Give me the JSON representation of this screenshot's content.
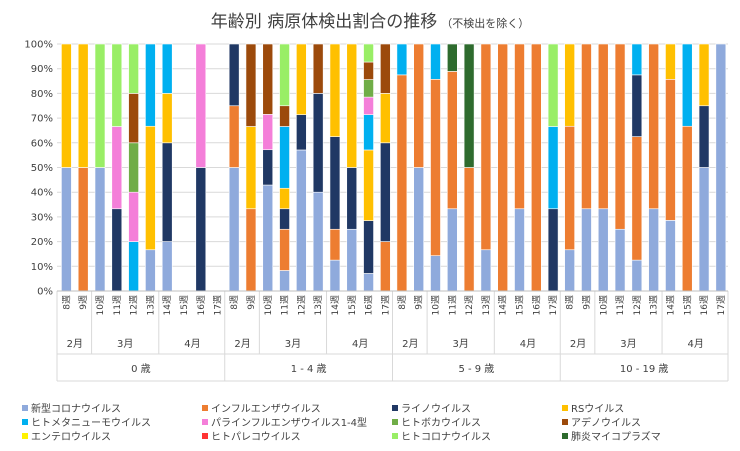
{
  "chart_data": {
    "type": "bar",
    "stacked": "percent",
    "title": "年齢別 病原体検出割合の推移",
    "subtitle": "（不検出を除く）",
    "ylim": [
      0,
      100
    ],
    "yticks": [
      "0%",
      "10%",
      "20%",
      "30%",
      "40%",
      "50%",
      "60%",
      "70%",
      "80%",
      "90%",
      "100%"
    ],
    "weeks": [
      "8週",
      "9週",
      "10週",
      "11週",
      "12週",
      "13週",
      "14週",
      "15週",
      "16週",
      "17週"
    ],
    "months": [
      {
        "label": "2月",
        "start": 0,
        "end": 1
      },
      {
        "label": "3月",
        "start": 2,
        "end": 5
      },
      {
        "label": "4月",
        "start": 6,
        "end": 9
      }
    ],
    "pathogens": [
      {
        "name": "新型コロナウイルス",
        "color": "#8FAADC"
      },
      {
        "name": "インフルエンザウイルス",
        "color": "#ED7D31"
      },
      {
        "name": "ライノウイルス",
        "color": "#203864"
      },
      {
        "name": "RSウイルス",
        "color": "#FFC000"
      },
      {
        "name": "ヒトメタニューモウイルス",
        "color": "#00B0F0"
      },
      {
        "name": "パラインフルエンザウイルス1-4型",
        "color": "#F47FD9"
      },
      {
        "name": "ヒトボカウイルス",
        "color": "#70AD47"
      },
      {
        "name": "アデノウイルス",
        "color": "#9C4A0B"
      },
      {
        "name": "エンテロウイルス",
        "color": "#FFF200"
      },
      {
        "name": "ヒトパレコウイルス",
        "color": "#FF3333"
      },
      {
        "name": "ヒトコロナウイルス",
        "color": "#99EE66"
      },
      {
        "name": "肺炎マイコプラズマ",
        "color": "#2E6B2E"
      }
    ],
    "groups": [
      {
        "label": "0 歳",
        "bars": [
          {
            "week": "8週",
            "segments": [
              {
                "p": 0,
                "v": 50
              },
              {
                "p": 3,
                "v": 50
              }
            ]
          },
          {
            "week": "9週",
            "segments": [
              {
                "p": 1,
                "v": 50
              },
              {
                "p": 3,
                "v": 50
              }
            ]
          },
          {
            "week": "10週",
            "segments": [
              {
                "p": 0,
                "v": 50
              },
              {
                "p": 10,
                "v": 50
              }
            ]
          },
          {
            "week": "11週",
            "segments": [
              {
                "p": 2,
                "v": 33.3
              },
              {
                "p": 5,
                "v": 33.3
              },
              {
                "p": 10,
                "v": 33.4
              }
            ]
          },
          {
            "week": "12週",
            "segments": [
              {
                "p": 4,
                "v": 20
              },
              {
                "p": 5,
                "v": 20
              },
              {
                "p": 6,
                "v": 20
              },
              {
                "p": 7,
                "v": 20
              },
              {
                "p": 10,
                "v": 20
              }
            ]
          },
          {
            "week": "13週",
            "segments": [
              {
                "p": 0,
                "v": 16.7
              },
              {
                "p": 3,
                "v": 50
              },
              {
                "p": 4,
                "v": 33.3
              }
            ]
          },
          {
            "week": "14週",
            "segments": [
              {
                "p": 0,
                "v": 20
              },
              {
                "p": 2,
                "v": 40
              },
              {
                "p": 3,
                "v": 20
              },
              {
                "p": 4,
                "v": 20
              }
            ]
          },
          {
            "week": "15週",
            "segments": []
          },
          {
            "week": "16週",
            "segments": [
              {
                "p": 2,
                "v": 50
              },
              {
                "p": 5,
                "v": 50
              }
            ]
          },
          {
            "week": "17週",
            "segments": []
          }
        ]
      },
      {
        "label": "1 - 4 歳",
        "bars": [
          {
            "week": "8週",
            "segments": [
              {
                "p": 0,
                "v": 50
              },
              {
                "p": 1,
                "v": 25
              },
              {
                "p": 2,
                "v": 25
              }
            ]
          },
          {
            "week": "9週",
            "segments": [
              {
                "p": 1,
                "v": 33.3
              },
              {
                "p": 3,
                "v": 33.3
              },
              {
                "p": 7,
                "v": 33.4
              }
            ]
          },
          {
            "week": "10週",
            "segments": [
              {
                "p": 0,
                "v": 42.9
              },
              {
                "p": 2,
                "v": 14.3
              },
              {
                "p": 5,
                "v": 14.3
              },
              {
                "p": 7,
                "v": 28.5
              }
            ]
          },
          {
            "week": "11週",
            "segments": [
              {
                "p": 0,
                "v": 8.3
              },
              {
                "p": 1,
                "v": 16.7
              },
              {
                "p": 2,
                "v": 8.3
              },
              {
                "p": 3,
                "v": 8.3
              },
              {
                "p": 4,
                "v": 25
              },
              {
                "p": 7,
                "v": 8.4
              },
              {
                "p": 10,
                "v": 25
              }
            ]
          },
          {
            "week": "12週",
            "segments": [
              {
                "p": 0,
                "v": 57.1
              },
              {
                "p": 2,
                "v": 14.3
              },
              {
                "p": 3,
                "v": 28.6
              }
            ]
          },
          {
            "week": "13週",
            "segments": [
              {
                "p": 0,
                "v": 40
              },
              {
                "p": 2,
                "v": 40
              },
              {
                "p": 7,
                "v": 20
              }
            ]
          },
          {
            "week": "14週",
            "segments": [
              {
                "p": 0,
                "v": 12.5
              },
              {
                "p": 1,
                "v": 12.5
              },
              {
                "p": 2,
                "v": 37.5
              },
              {
                "p": 3,
                "v": 37.5
              }
            ]
          },
          {
            "week": "15週",
            "segments": [
              {
                "p": 0,
                "v": 25
              },
              {
                "p": 2,
                "v": 25
              },
              {
                "p": 3,
                "v": 50
              }
            ]
          },
          {
            "week": "16週",
            "segments": [
              {
                "p": 0,
                "v": 7.1
              },
              {
                "p": 2,
                "v": 21.4
              },
              {
                "p": 3,
                "v": 28.6
              },
              {
                "p": 4,
                "v": 14.3
              },
              {
                "p": 5,
                "v": 7.1
              },
              {
                "p": 6,
                "v": 7.1
              },
              {
                "p": 7,
                "v": 7.1
              },
              {
                "p": 10,
                "v": 7.3
              }
            ]
          },
          {
            "week": "17週",
            "segments": [
              {
                "p": 1,
                "v": 20
              },
              {
                "p": 2,
                "v": 40
              },
              {
                "p": 3,
                "v": 20
              },
              {
                "p": 7,
                "v": 20
              }
            ]
          }
        ]
      },
      {
        "label": "5 - 9 歳",
        "bars": [
          {
            "week": "8週",
            "segments": [
              {
                "p": 1,
                "v": 87.5
              },
              {
                "p": 4,
                "v": 12.5
              }
            ]
          },
          {
            "week": "9週",
            "segments": [
              {
                "p": 0,
                "v": 50
              },
              {
                "p": 1,
                "v": 50
              }
            ]
          },
          {
            "week": "10週",
            "segments": [
              {
                "p": 0,
                "v": 14.3
              },
              {
                "p": 1,
                "v": 71.4
              },
              {
                "p": 4,
                "v": 14.3
              }
            ]
          },
          {
            "week": "11週",
            "segments": [
              {
                "p": 0,
                "v": 33.3
              },
              {
                "p": 1,
                "v": 55.6
              },
              {
                "p": 11,
                "v": 11.1
              }
            ]
          },
          {
            "week": "12週",
            "segments": [
              {
                "p": 1,
                "v": 50
              },
              {
                "p": 11,
                "v": 50
              }
            ]
          },
          {
            "week": "13週",
            "segments": [
              {
                "p": 0,
                "v": 16.7
              },
              {
                "p": 1,
                "v": 83.3
              }
            ]
          },
          {
            "week": "14週",
            "segments": [
              {
                "p": 1,
                "v": 100
              }
            ]
          },
          {
            "week": "15週",
            "segments": [
              {
                "p": 0,
                "v": 33.3
              },
              {
                "p": 1,
                "v": 66.7
              }
            ]
          },
          {
            "week": "16週",
            "segments": [
              {
                "p": 1,
                "v": 100
              }
            ]
          },
          {
            "week": "17週",
            "segments": [
              {
                "p": 2,
                "v": 33.3
              },
              {
                "p": 4,
                "v": 33.3
              },
              {
                "p": 10,
                "v": 33.4
              }
            ]
          }
        ]
      },
      {
        "label": "10 - 19 歳",
        "bars": [
          {
            "week": "8週",
            "segments": [
              {
                "p": 0,
                "v": 16.7
              },
              {
                "p": 1,
                "v": 50
              },
              {
                "p": 3,
                "v": 33.3
              }
            ]
          },
          {
            "week": "9週",
            "segments": [
              {
                "p": 0,
                "v": 33.3
              },
              {
                "p": 1,
                "v": 66.7
              }
            ]
          },
          {
            "week": "10週",
            "segments": [
              {
                "p": 0,
                "v": 33.3
              },
              {
                "p": 1,
                "v": 66.7
              }
            ]
          },
          {
            "week": "11週",
            "segments": [
              {
                "p": 0,
                "v": 25
              },
              {
                "p": 1,
                "v": 75
              }
            ]
          },
          {
            "week": "12週",
            "segments": [
              {
                "p": 0,
                "v": 12.5
              },
              {
                "p": 1,
                "v": 50
              },
              {
                "p": 2,
                "v": 25
              },
              {
                "p": 4,
                "v": 12.5
              }
            ]
          },
          {
            "week": "13週",
            "segments": [
              {
                "p": 0,
                "v": 33.3
              },
              {
                "p": 1,
                "v": 66.7
              }
            ]
          },
          {
            "week": "14週",
            "segments": [
              {
                "p": 0,
                "v": 28.6
              },
              {
                "p": 1,
                "v": 57.1
              },
              {
                "p": 3,
                "v": 14.3
              }
            ]
          },
          {
            "week": "15週",
            "segments": [
              {
                "p": 1,
                "v": 66.7
              },
              {
                "p": 4,
                "v": 33.3
              }
            ]
          },
          {
            "week": "16週",
            "segments": [
              {
                "p": 0,
                "v": 50
              },
              {
                "p": 2,
                "v": 25
              },
              {
                "p": 3,
                "v": 25
              }
            ]
          },
          {
            "week": "17週",
            "segments": [
              {
                "p": 0,
                "v": 100
              }
            ]
          }
        ]
      }
    ]
  }
}
